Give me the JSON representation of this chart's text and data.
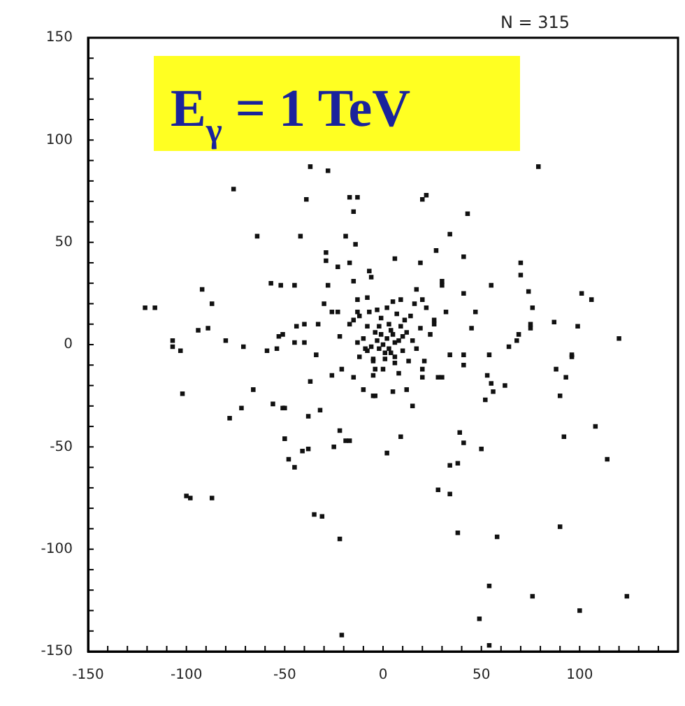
{
  "chart_data": {
    "type": "scatter",
    "title": "E$_{γ}$ = 1 TeV",
    "annotations": [
      "N = 315"
    ],
    "marker": "square",
    "grid": false,
    "xlim": [
      -150,
      150
    ],
    "xticks": [
      -150,
      -100,
      -50,
      0,
      50,
      100
    ],
    "ylim": [
      -150,
      150
    ],
    "yticks": [
      -150,
      -100,
      -50,
      0,
      50,
      100,
      150
    ],
    "series": [
      {
        "color": "#111111",
        "x": [
          -37,
          -28,
          -76,
          -39,
          -17,
          -13,
          -15,
          -64,
          -42,
          -19,
          -14,
          -29,
          -29,
          -17,
          -23,
          -7,
          -6,
          -92,
          -57,
          -52,
          -45,
          -15,
          -28,
          -87,
          -121,
          -116,
          -30,
          -13,
          -8,
          -26,
          -23,
          -13,
          -12,
          -15,
          -3,
          -44,
          -40,
          -33,
          -17,
          -94,
          -89,
          -107,
          -107,
          -103,
          -80,
          -71,
          -59,
          -54,
          -51,
          -53,
          -45,
          -40,
          -34,
          -22,
          -13,
          -9,
          -8,
          -5,
          -26,
          -21,
          -15,
          -5,
          -37,
          -102,
          -66,
          -5,
          79,
          22,
          20,
          43,
          34,
          6,
          19,
          27,
          41,
          70,
          70,
          30,
          30,
          55,
          41,
          17,
          20,
          74,
          76,
          101,
          106,
          9,
          22,
          32,
          47,
          26,
          26,
          45,
          75,
          75,
          87,
          99,
          120,
          69,
          68,
          64,
          34,
          41,
          41,
          54,
          96,
          96,
          88,
          93,
          20,
          28,
          30,
          53,
          55,
          56,
          62,
          90,
          5,
          12,
          -10,
          -4,
          -72,
          -56,
          -51,
          -50,
          -78,
          -38,
          -32,
          -22,
          -50,
          -17,
          -19,
          -41,
          -38,
          -25,
          -48,
          -45,
          -100,
          -98,
          -87,
          -35,
          -31,
          -22,
          -21,
          15,
          9,
          2,
          39,
          41,
          50,
          34,
          38,
          28,
          34,
          52,
          92,
          108,
          114,
          38,
          58,
          90,
          54,
          76,
          124,
          100,
          49,
          54,
          0,
          2,
          -2,
          4,
          5,
          -4,
          1,
          8,
          -6,
          3,
          10,
          -1,
          6,
          12,
          -8,
          0,
          7,
          15,
          -10,
          2,
          13,
          -5,
          9,
          -3,
          3,
          6,
          -1,
          4,
          11,
          17,
          19,
          -12,
          8,
          14,
          21,
          5,
          -7,
          16,
          24,
          1,
          -2,
          10,
          6,
          -4,
          20
        ],
        "values": [
          87,
          85,
          76,
          71,
          72,
          72,
          65,
          53,
          53,
          53,
          49,
          45,
          41,
          40,
          38,
          36,
          33,
          27,
          30,
          29,
          29,
          31,
          29,
          20,
          18,
          18,
          20,
          22,
          23,
          16,
          16,
          16,
          14,
          12,
          17,
          9,
          10,
          10,
          10,
          7,
          8,
          2,
          -1,
          -3,
          2,
          -1,
          -3,
          -2,
          5,
          4,
          1,
          1,
          -5,
          4,
          1,
          -2,
          -3,
          -7,
          -15,
          -12,
          -16,
          -15,
          -18,
          -24,
          -22,
          -25,
          87,
          73,
          71,
          64,
          54,
          42,
          40,
          46,
          43,
          40,
          34,
          31,
          29,
          29,
          25,
          27,
          22,
          26,
          18,
          25,
          22,
          22,
          18,
          16,
          16,
          12,
          10,
          8,
          10,
          8,
          11,
          9,
          3,
          5,
          2,
          -1,
          -5,
          -5,
          -10,
          -5,
          -5,
          -6,
          -12,
          -16,
          -16,
          -16,
          -16,
          -15,
          -19,
          -23,
          -20,
          -25,
          -23,
          -22,
          -22,
          -25,
          -31,
          -29,
          -31,
          -31,
          -36,
          -35,
          -32,
          -42,
          -46,
          -47,
          -47,
          -52,
          -51,
          -50,
          -56,
          -60,
          -74,
          -75,
          -75,
          -83,
          -84,
          -95,
          -142,
          -30,
          -45,
          -53,
          -43,
          -48,
          -51,
          -59,
          -58,
          -71,
          -73,
          -27,
          -45,
          -40,
          -56,
          -92,
          -94,
          -89,
          -118,
          -123,
          -123,
          -130,
          -134,
          -147,
          0,
          3,
          -2,
          -4,
          5,
          6,
          -7,
          2,
          -1,
          10,
          -3,
          13,
          -9,
          6,
          9,
          -12,
          15,
          2,
          3,
          18,
          -8,
          -8,
          9,
          2,
          -2,
          1,
          5,
          7,
          12,
          -2,
          8,
          -6,
          -14,
          14,
          -8,
          21,
          16,
          20,
          5,
          -4,
          9,
          4,
          -6,
          -12,
          -12
        ]
      }
    ]
  }
}
